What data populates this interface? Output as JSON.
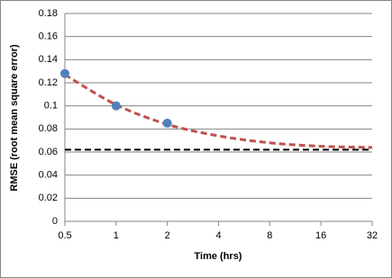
{
  "chart_data": {
    "type": "scatter",
    "xlabel": "Time (hrs)",
    "ylabel": "RMSE (root mean square error)",
    "xscale": "log",
    "xlim": [
      0.5,
      32
    ],
    "xticks": [
      0.5,
      1,
      2,
      4,
      8,
      16,
      32
    ],
    "ylim": [
      0,
      0.18
    ],
    "yticks": [
      0,
      0.02,
      0.04,
      0.06,
      0.08,
      0.1,
      0.12,
      0.14,
      0.16,
      0.18
    ],
    "grid": true,
    "series": [
      {
        "mode": "line",
        "dash": true,
        "color": "#c0504d",
        "x": [
          0.5,
          1,
          2,
          4,
          8,
          16,
          32
        ],
        "values": [
          0.127,
          0.101,
          0.084,
          0.074,
          0.068,
          0.065,
          0.064
        ]
      },
      {
        "mode": "line",
        "dash": true,
        "color": "#000000",
        "x": [
          0.5,
          32
        ],
        "values": [
          0.062,
          0.062
        ]
      },
      {
        "mode": "markers",
        "color": "#4f81bd",
        "x": [
          0.5,
          1,
          2
        ],
        "values": [
          0.128,
          0.1,
          0.085
        ]
      }
    ]
  }
}
